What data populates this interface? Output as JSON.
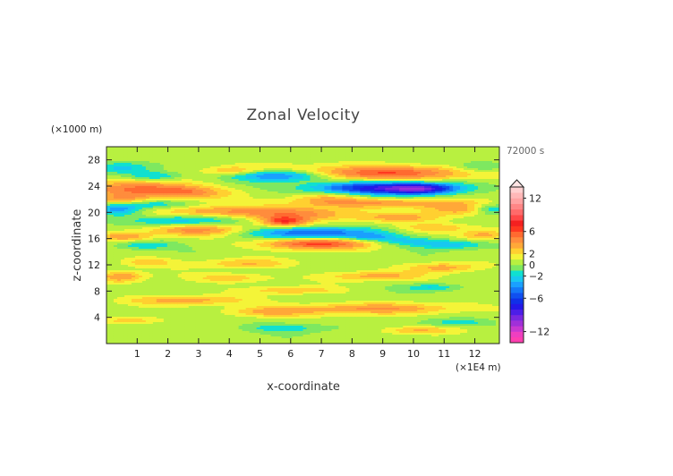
{
  "chart_data": {
    "type": "heatmap",
    "title": "Zonal Velocity",
    "xlabel": "x-coordinate",
    "ylabel": "z-coordinate",
    "x_unit": "(×1E4 m)",
    "y_unit": "(×1000 m)",
    "time_label": "72000 s",
    "xlim": [
      0,
      12.8
    ],
    "ylim": [
      0,
      30
    ],
    "x_ticks": [
      1,
      2,
      3,
      4,
      5,
      6,
      7,
      8,
      9,
      10,
      11,
      12
    ],
    "y_ticks": [
      4,
      8,
      12,
      16,
      20,
      24,
      28
    ],
    "colorbar": {
      "levels": [
        -14,
        -13,
        -12,
        -11,
        -10,
        -9,
        -8,
        -7,
        -6,
        -5,
        -4,
        -3,
        -2,
        -1,
        0,
        1,
        2,
        3,
        4,
        5,
        6,
        7,
        8,
        9,
        10,
        11,
        12,
        13,
        14
      ],
      "tick_labels": [
        "12",
        "6",
        "2",
        "0",
        "−2",
        "−6",
        "−12"
      ],
      "tick_values": [
        12,
        6,
        2,
        0,
        -2,
        -6,
        -12
      ],
      "colors": {
        "-13.5": "#ff3fb0",
        "-12.5": "#ef3fc0",
        "-11.5": "#c838d0",
        "-10.5": "#a030d8",
        "-9.5": "#7a28e0",
        "-8.5": "#4c1ee8",
        "-7.5": "#2418e8",
        "-6.5": "#1030e8",
        "-5.5": "#1050f0",
        "-4.5": "#1478f8",
        "-3.5": "#1aa0ff",
        "-2.5": "#18c8f0",
        "-1.5": "#10e0d0",
        "-0.5": "#7ee860",
        "0.5": "#b8f040",
        "1.5": "#f4f438",
        "2.5": "#ffd030",
        "3.5": "#ffa838",
        "4.5": "#ff8c3c",
        "5.5": "#ff6a30",
        "6.5": "#ff3820",
        "7.5": "#f42020",
        "8.5": "#ff4848",
        "9.5": "#ff6a6a",
        "10.5": "#ff8686",
        "11.5": "#ffa2a2",
        "12.5": "#ffb8b8",
        "13.5": "#ffd0d0"
      }
    },
    "features": [
      {
        "x": 1.0,
        "z": 23.6,
        "sx": 1.2,
        "sz": 0.9,
        "u": 4.5
      },
      {
        "x": 2.6,
        "z": 23.0,
        "sx": 1.0,
        "sz": 0.7,
        "u": 3.5
      },
      {
        "x": 1.6,
        "z": 25.5,
        "sx": 0.6,
        "sz": 0.5,
        "u": -3.0
      },
      {
        "x": 0.6,
        "z": 26.8,
        "sx": 0.7,
        "sz": 0.6,
        "u": -2.5
      },
      {
        "x": 5.7,
        "z": 25.6,
        "sx": 1.1,
        "sz": 0.6,
        "u": -6.0
      },
      {
        "x": 4.1,
        "z": 26.3,
        "sx": 0.6,
        "sz": 0.5,
        "u": 2.5
      },
      {
        "x": 8.8,
        "z": 26.0,
        "sx": 2.2,
        "sz": 0.8,
        "u": 5.5
      },
      {
        "x": 12.2,
        "z": 26.9,
        "sx": 0.6,
        "sz": 0.6,
        "u": -2.5
      },
      {
        "x": 8.7,
        "z": 23.7,
        "sx": 1.5,
        "sz": 0.7,
        "u": -7.5
      },
      {
        "x": 10.3,
        "z": 23.6,
        "sx": 0.8,
        "sz": 0.6,
        "u": -6.5
      },
      {
        "x": 9.1,
        "z": 21.4,
        "sx": 2.0,
        "sz": 0.5,
        "u": 3.5
      },
      {
        "x": 7.2,
        "z": 22.2,
        "sx": 0.8,
        "sz": 0.6,
        "u": 2.5
      },
      {
        "x": 0.5,
        "z": 22.0,
        "sx": 0.6,
        "sz": 0.5,
        "u": 3.0
      },
      {
        "x": 1.5,
        "z": 21.2,
        "sx": 0.8,
        "sz": 0.5,
        "u": -2.5
      },
      {
        "x": 0.4,
        "z": 20.4,
        "sx": 0.5,
        "sz": 0.6,
        "u": -4.0
      },
      {
        "x": 3.6,
        "z": 20.1,
        "sx": 1.3,
        "sz": 0.6,
        "u": 3.5
      },
      {
        "x": 2.4,
        "z": 18.8,
        "sx": 1.2,
        "sz": 0.6,
        "u": -3.0
      },
      {
        "x": 6.3,
        "z": 19.8,
        "sx": 1.2,
        "sz": 0.8,
        "u": 4.0
      },
      {
        "x": 5.8,
        "z": 18.6,
        "sx": 0.5,
        "sz": 0.5,
        "u": 5.0
      },
      {
        "x": 9.7,
        "z": 19.2,
        "sx": 1.0,
        "sz": 0.5,
        "u": 3.0
      },
      {
        "x": 11.4,
        "z": 20.4,
        "sx": 0.8,
        "sz": 0.6,
        "u": 3.0
      },
      {
        "x": 12.5,
        "z": 20.5,
        "sx": 0.4,
        "sz": 0.6,
        "u": -3.0
      },
      {
        "x": 6.6,
        "z": 16.9,
        "sx": 1.5,
        "sz": 0.6,
        "u": -5.5
      },
      {
        "x": 8.6,
        "z": 16.2,
        "sx": 0.6,
        "sz": 0.4,
        "u": -3.0
      },
      {
        "x": 6.8,
        "z": 15.2,
        "sx": 1.2,
        "sz": 0.6,
        "u": 6.0
      },
      {
        "x": 3.0,
        "z": 17.3,
        "sx": 1.2,
        "sz": 0.6,
        "u": 4.0
      },
      {
        "x": 0.6,
        "z": 16.3,
        "sx": 0.6,
        "sz": 0.5,
        "u": 3.5
      },
      {
        "x": 1.2,
        "z": 15.0,
        "sx": 0.7,
        "sz": 0.5,
        "u": -2.5
      },
      {
        "x": 11.2,
        "z": 15.1,
        "sx": 0.8,
        "sz": 0.5,
        "u": -3.0
      },
      {
        "x": 9.8,
        "z": 15.6,
        "sx": 0.7,
        "sz": 0.5,
        "u": -2.5
      },
      {
        "x": 12.3,
        "z": 16.5,
        "sx": 0.5,
        "sz": 0.6,
        "u": 3.0
      },
      {
        "x": 10.7,
        "z": 17.7,
        "sx": 0.8,
        "sz": 0.5,
        "u": 2.5
      },
      {
        "x": 4.5,
        "z": 12.2,
        "sx": 1.0,
        "sz": 0.5,
        "u": 2.5
      },
      {
        "x": 0.5,
        "z": 10.2,
        "sx": 0.5,
        "sz": 0.6,
        "u": 3.5
      },
      {
        "x": 1.3,
        "z": 12.4,
        "sx": 0.6,
        "sz": 0.5,
        "u": 2.5
      },
      {
        "x": 4.1,
        "z": 10.0,
        "sx": 0.9,
        "sz": 0.5,
        "u": 2.5
      },
      {
        "x": 8.8,
        "z": 10.3,
        "sx": 1.1,
        "sz": 0.5,
        "u": 3.0
      },
      {
        "x": 11.0,
        "z": 11.6,
        "sx": 0.8,
        "sz": 0.5,
        "u": 3.0
      },
      {
        "x": 10.6,
        "z": 8.5,
        "sx": 0.6,
        "sz": 0.4,
        "u": -2.5
      },
      {
        "x": 2.6,
        "z": 6.6,
        "sx": 1.4,
        "sz": 0.5,
        "u": 3.0
      },
      {
        "x": 6.1,
        "z": 8.1,
        "sx": 1.0,
        "sz": 0.4,
        "u": 2.5
      },
      {
        "x": 8.6,
        "z": 5.3,
        "sx": 2.2,
        "sz": 0.6,
        "u": 3.5
      },
      {
        "x": 5.2,
        "z": 4.8,
        "sx": 1.0,
        "sz": 0.5,
        "u": 2.5
      },
      {
        "x": 0.8,
        "z": 3.5,
        "sx": 0.7,
        "sz": 0.4,
        "u": 2.5
      },
      {
        "x": 11.4,
        "z": 3.2,
        "sx": 0.8,
        "sz": 0.4,
        "u": -2.0
      },
      {
        "x": 5.8,
        "z": 2.4,
        "sx": 1.0,
        "sz": 0.5,
        "u": -2.0
      },
      {
        "x": 10.1,
        "z": 2.0,
        "sx": 0.8,
        "sz": 0.4,
        "u": 2.5
      }
    ]
  }
}
